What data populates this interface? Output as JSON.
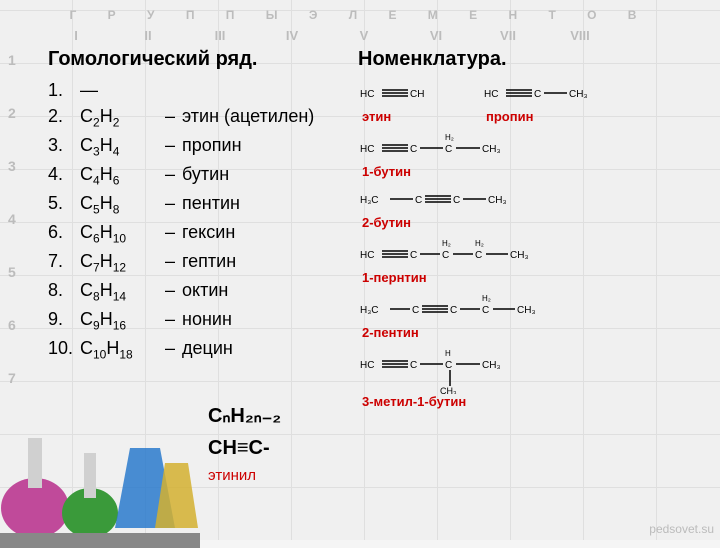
{
  "bg": {
    "header": "Г Р У П П Ы  Э Л Е М Е Н Т О В",
    "romans": [
      "I",
      "II",
      "III",
      "IV",
      "V",
      "VI",
      "VII",
      "VIII"
    ],
    "periods": [
      "1",
      "2",
      "3",
      "4",
      "5",
      "6",
      "7"
    ]
  },
  "titles": {
    "left": "Гомологический ряд.",
    "right": "Номенклатура."
  },
  "series": [
    {
      "n": "1.",
      "f": "—",
      "name": ""
    },
    {
      "n": "2.",
      "c": "2",
      "h": "2",
      "name": "этин (ацетилен)"
    },
    {
      "n": "3.",
      "c": "3",
      "h": "4",
      "name": "пропин"
    },
    {
      "n": "4.",
      "c": "4",
      "h": "6",
      "name": "бутин"
    },
    {
      "n": "5.",
      "c": "5",
      "h": "8",
      "name": "пентин"
    },
    {
      "n": "6.",
      "c": "6",
      "h": "10",
      "name": "гексин"
    },
    {
      "n": "7.",
      "c": "7",
      "h": "12",
      "name": "гептин"
    },
    {
      "n": "8.",
      "c": "8",
      "h": "14",
      "name": "октин"
    },
    {
      "n": "9.",
      "c": "9",
      "h": "16",
      "name": "нонин"
    },
    {
      "n": "10.",
      "c": "10",
      "h": "18",
      "name": "децин"
    }
  ],
  "general_formula": {
    "top": "CₙH₂ₙ₋₂",
    "mid": "CH≡C-",
    "grp": "этинил"
  },
  "nomenclature": [
    {
      "label": "этин"
    },
    {
      "label": "пропин"
    },
    {
      "label": "1-бутин"
    },
    {
      "label": "2-бутин"
    },
    {
      "label": "1-пернтин"
    },
    {
      "label": "2-пентин"
    },
    {
      "label": "3-метил-1-бутин"
    }
  ],
  "colors": {
    "red": "#c00020",
    "text": "#000",
    "bond": "#000"
  },
  "watermark": "pedsovet.su"
}
